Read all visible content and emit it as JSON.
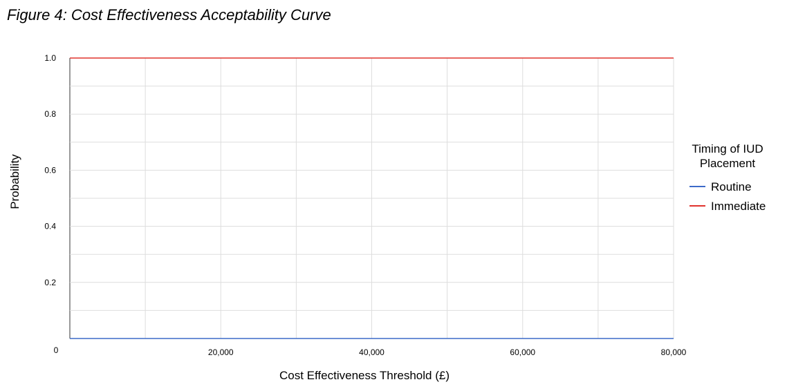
{
  "figure_title": "Figure 4: Cost Effectiveness Acceptability Curve",
  "chart_data": {
    "type": "line",
    "title": "Figure 4: Cost Effectiveness Acceptability Curve",
    "xlabel": "Cost Effectiveness Threshold (£)",
    "ylabel": "Probability",
    "xlim": [
      0,
      80000
    ],
    "ylim": [
      0,
      1.0
    ],
    "x_ticks": [
      0,
      20000,
      40000,
      60000,
      80000
    ],
    "x_tick_labels": [
      "0",
      "20,000",
      "40,000",
      "60,000",
      "80,000"
    ],
    "y_ticks": [
      0.2,
      0.4,
      0.6,
      0.8,
      1.0
    ],
    "y_tick_labels": [
      "0.2",
      "0.4",
      "0.6",
      "0.8",
      "1.0"
    ],
    "grid": true,
    "legend_title": "Timing of IUD Placement",
    "legend_title_lines": [
      "Timing of IUD",
      "Placement"
    ],
    "legend_position": "right",
    "series": [
      {
        "name": "Routine",
        "color": "#3c6ac8",
        "x": [
          0,
          80000
        ],
        "y": [
          0,
          0
        ]
      },
      {
        "name": "Immediate",
        "color": "#e0322c",
        "x": [
          0,
          80000
        ],
        "y": [
          1.0,
          1.0
        ]
      }
    ]
  }
}
